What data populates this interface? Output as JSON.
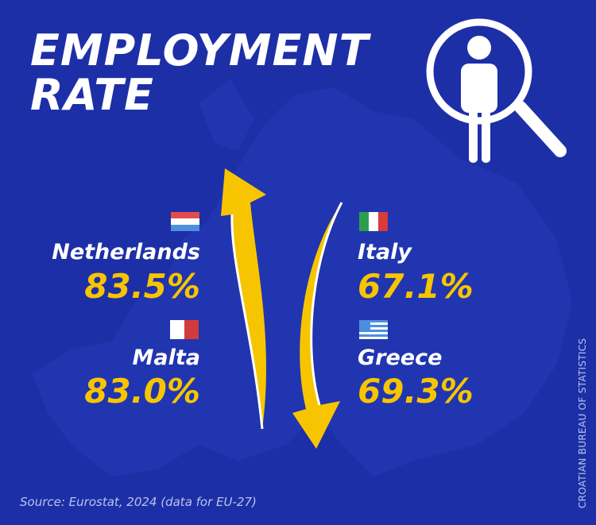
{
  "header": {
    "title_lines": [
      "EMPLOYMENT",
      "RATE"
    ]
  },
  "countries": [
    {
      "name": "Netherlands",
      "value": "83.5%"
    },
    {
      "name": "Malta",
      "value": "83.0%"
    },
    {
      "name": "Italy",
      "value": "67.1%"
    },
    {
      "name": "Greece",
      "value": "69.3%"
    }
  ],
  "source": "Source: Eurostat, 2024 (data for EU-27)",
  "credit": "CROATIAN BUREAU OF STATISTICS"
}
